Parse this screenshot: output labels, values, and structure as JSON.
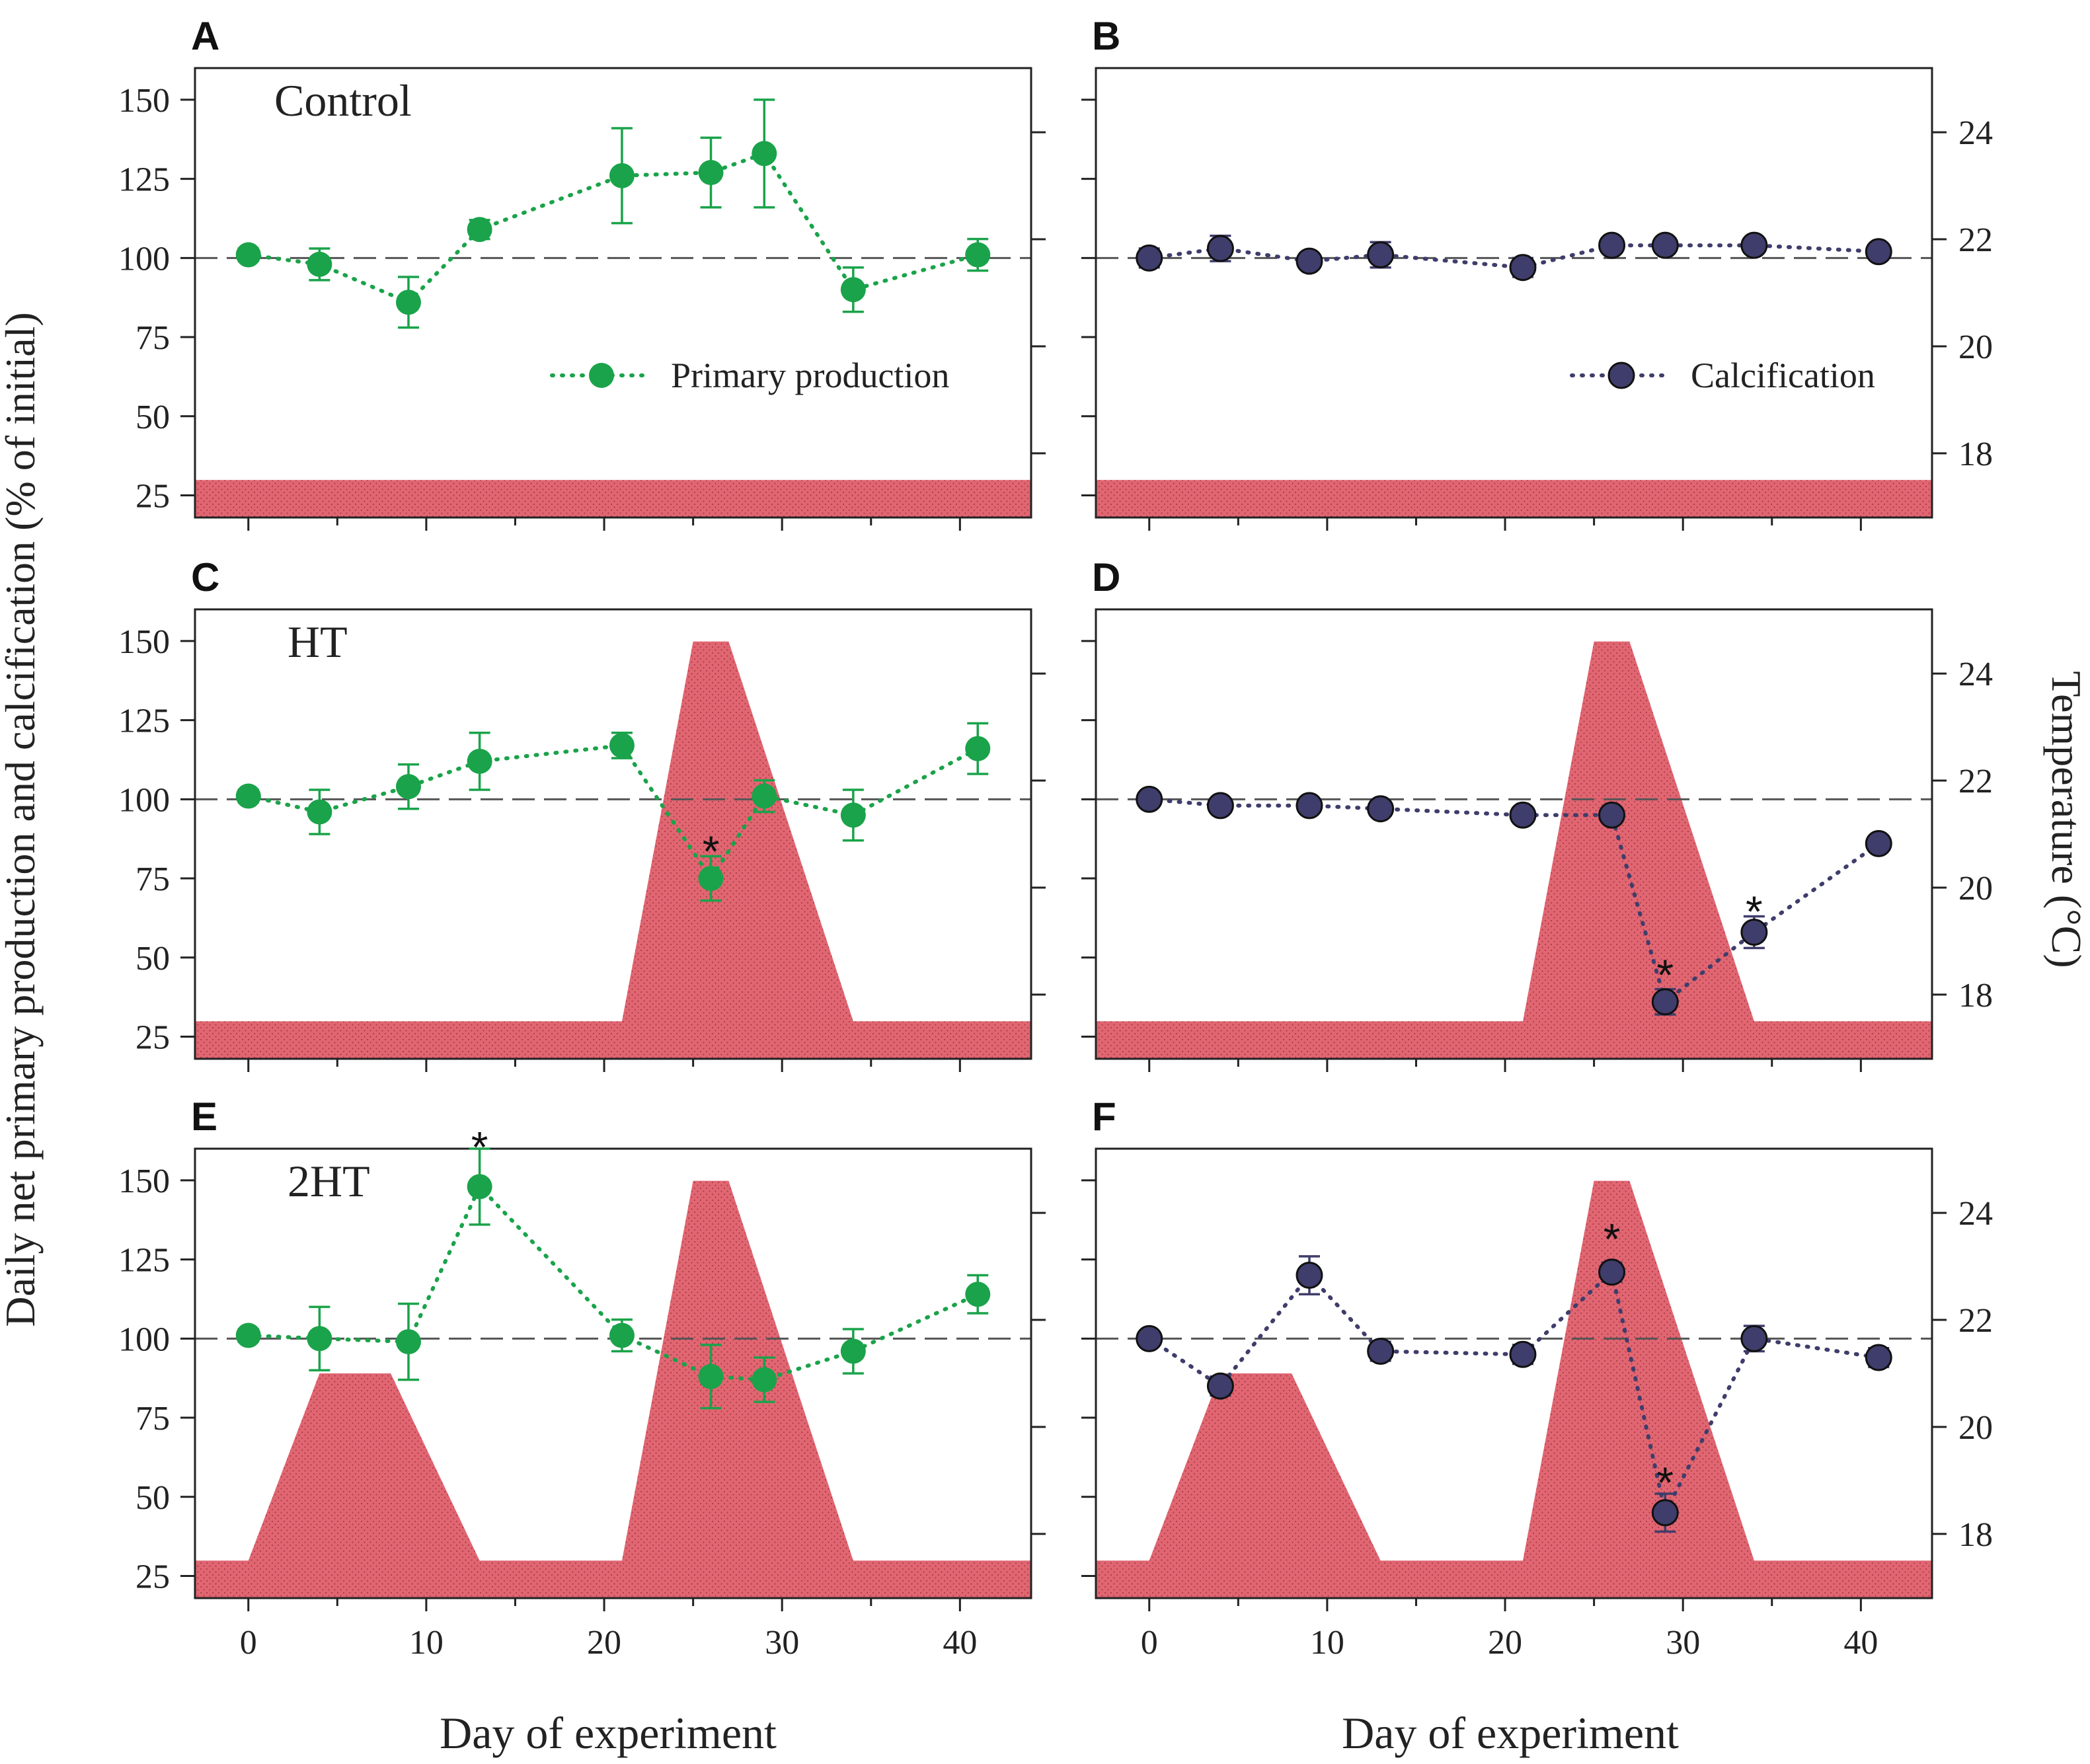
{
  "figure": {
    "ylabel_left": "Daily net primary production and calcification (% of initial)",
    "ylabel_right": "Temperature (°C)",
    "xlabel": "Day of experiment",
    "legend_pp": "Primary production",
    "legend_calc": "Calcification",
    "colors": {
      "pp": "#1aa34a",
      "calc": "#3f3d6b",
      "temp_fill": "#e06672",
      "temp_dots": "#b23a48",
      "reference": "#555555"
    }
  },
  "chart_data": [
    {
      "panel": "A",
      "type": "line",
      "title": "Control",
      "treatment": "Control",
      "series": "Primary production",
      "legend": "Primary production",
      "xlim": [
        -3,
        44
      ],
      "ylim": [
        18,
        160
      ],
      "xticks": [
        0,
        10,
        20,
        30,
        40
      ],
      "yticks": [
        25,
        50,
        75,
        100,
        125,
        150
      ],
      "reference_y": 100,
      "show_left_ticklabels": true,
      "show_right_ticklabels": false,
      "show_xticklabels": false,
      "x": [
        0,
        4,
        9,
        13,
        21,
        26,
        29,
        34,
        41
      ],
      "y": [
        101,
        98,
        86,
        109,
        126,
        127,
        133,
        90,
        101
      ],
      "err": [
        2,
        5,
        8,
        3,
        15,
        11,
        17,
        7,
        5
      ],
      "signif": [],
      "temp_ylim": [
        16.8,
        25.2
      ],
      "temp_yticks": [
        18,
        20,
        22,
        24
      ],
      "temperature": {
        "x": [
          -3,
          44
        ],
        "y": [
          17.5,
          17.5
        ]
      }
    },
    {
      "panel": "B",
      "type": "line",
      "title": "",
      "treatment": "Control",
      "series": "Calcification",
      "legend": "Calcification",
      "xlim": [
        -3,
        44
      ],
      "ylim": [
        18,
        160
      ],
      "xticks": [
        0,
        10,
        20,
        30,
        40
      ],
      "yticks": [
        25,
        50,
        75,
        100,
        125,
        150
      ],
      "reference_y": 100,
      "show_left_ticklabels": false,
      "show_right_ticklabels": true,
      "show_xticklabels": false,
      "x": [
        0,
        4,
        9,
        13,
        21,
        26,
        29,
        34,
        41
      ],
      "y": [
        100,
        103,
        99,
        101,
        97,
        104,
        104,
        104,
        102
      ],
      "err": [
        3,
        4,
        2,
        4,
        3,
        2,
        2,
        2,
        2
      ],
      "signif": [],
      "temp_ylim": [
        16.8,
        25.2
      ],
      "temp_yticks": [
        18,
        20,
        22,
        24
      ],
      "temperature": {
        "x": [
          -3,
          44
        ],
        "y": [
          17.5,
          17.5
        ]
      }
    },
    {
      "panel": "C",
      "type": "line",
      "title": "HT",
      "treatment": "HT",
      "series": "Primary production",
      "legend": "",
      "xlim": [
        -3,
        44
      ],
      "ylim": [
        18,
        160
      ],
      "xticks": [
        0,
        10,
        20,
        30,
        40
      ],
      "yticks": [
        25,
        50,
        75,
        100,
        125,
        150
      ],
      "reference_y": 100,
      "show_left_ticklabels": true,
      "show_right_ticklabels": false,
      "show_xticklabels": false,
      "x": [
        0,
        4,
        9,
        13,
        21,
        26,
        29,
        34,
        41
      ],
      "y": [
        101,
        96,
        104,
        112,
        117,
        75,
        101,
        95,
        116
      ],
      "err": [
        2,
        7,
        7,
        9,
        4,
        7,
        5,
        8,
        8
      ],
      "signif": [
        {
          "x": 26,
          "y": 85,
          "label": "*"
        }
      ],
      "temp_ylim": [
        16.8,
        25.2
      ],
      "temp_yticks": [
        18,
        20,
        22,
        24
      ],
      "temperature": {
        "x": [
          -3,
          21,
          25,
          27,
          34,
          44
        ],
        "y": [
          17.5,
          17.5,
          24.6,
          24.6,
          17.5,
          17.5
        ]
      }
    },
    {
      "panel": "D",
      "type": "line",
      "title": "",
      "treatment": "HT",
      "series": "Calcification",
      "legend": "",
      "xlim": [
        -3,
        44
      ],
      "ylim": [
        18,
        160
      ],
      "xticks": [
        0,
        10,
        20,
        30,
        40
      ],
      "yticks": [
        25,
        50,
        75,
        100,
        125,
        150
      ],
      "reference_y": 100,
      "show_left_ticklabels": false,
      "show_right_ticklabels": true,
      "show_xticklabels": false,
      "x": [
        0,
        4,
        9,
        13,
        21,
        26,
        29,
        34,
        41
      ],
      "y": [
        100,
        98,
        98,
        97,
        95,
        95,
        36,
        58,
        86
      ],
      "err": [
        2,
        2,
        2,
        2,
        2,
        2,
        4,
        5,
        2
      ],
      "signif": [
        {
          "x": 29,
          "y": 46,
          "label": "*"
        },
        {
          "x": 34,
          "y": 66,
          "label": "*"
        }
      ],
      "temp_ylim": [
        16.8,
        25.2
      ],
      "temp_yticks": [
        18,
        20,
        22,
        24
      ],
      "temperature": {
        "x": [
          -3,
          21,
          25,
          27,
          34,
          44
        ],
        "y": [
          17.5,
          17.5,
          24.6,
          24.6,
          17.5,
          17.5
        ]
      }
    },
    {
      "panel": "E",
      "type": "line",
      "title": "2HT",
      "treatment": "2HT",
      "series": "Primary production",
      "legend": "",
      "xlim": [
        -3,
        44
      ],
      "ylim": [
        18,
        160
      ],
      "xticks": [
        0,
        10,
        20,
        30,
        40
      ],
      "yticks": [
        25,
        50,
        75,
        100,
        125,
        150
      ],
      "reference_y": 100,
      "show_left_ticklabels": true,
      "show_right_ticklabels": false,
      "show_xticklabels": true,
      "x": [
        0,
        4,
        9,
        13,
        21,
        26,
        29,
        34,
        41
      ],
      "y": [
        101,
        100,
        99,
        148,
        101,
        88,
        87,
        96,
        114
      ],
      "err": [
        2,
        10,
        12,
        12,
        5,
        10,
        7,
        7,
        6
      ],
      "signif": [
        {
          "x": 13,
          "y": 162,
          "label": "*"
        }
      ],
      "temp_ylim": [
        16.8,
        25.2
      ],
      "temp_yticks": [
        18,
        20,
        22,
        24
      ],
      "temperature": {
        "x": [
          -3,
          0,
          4,
          8,
          13,
          21,
          25,
          27,
          34,
          44
        ],
        "y": [
          17.5,
          17.5,
          21.0,
          21.0,
          17.5,
          17.5,
          24.6,
          24.6,
          17.5,
          17.5
        ]
      }
    },
    {
      "panel": "F",
      "type": "line",
      "title": "",
      "treatment": "2HT",
      "series": "Calcification",
      "legend": "",
      "xlim": [
        -3,
        44
      ],
      "ylim": [
        18,
        160
      ],
      "xticks": [
        0,
        10,
        20,
        30,
        40
      ],
      "yticks": [
        25,
        50,
        75,
        100,
        125,
        150
      ],
      "reference_y": 100,
      "show_left_ticklabels": false,
      "show_right_ticklabels": true,
      "show_xticklabels": true,
      "x": [
        0,
        4,
        9,
        13,
        21,
        26,
        29,
        34,
        41
      ],
      "y": [
        100,
        85,
        120,
        96,
        95,
        121,
        45,
        100,
        94
      ],
      "err": [
        2,
        3,
        6,
        3,
        3,
        3,
        6,
        4,
        3
      ],
      "signif": [
        {
          "x": 26,
          "y": 133,
          "label": "*"
        },
        {
          "x": 29,
          "y": 56,
          "label": "*"
        }
      ],
      "temp_ylim": [
        16.8,
        25.2
      ],
      "temp_yticks": [
        18,
        20,
        22,
        24
      ],
      "temperature": {
        "x": [
          -3,
          0,
          4,
          8,
          13,
          21,
          25,
          27,
          34,
          44
        ],
        "y": [
          17.5,
          17.5,
          21.0,
          21.0,
          17.5,
          17.5,
          24.6,
          24.6,
          17.5,
          17.5
        ]
      }
    }
  ]
}
